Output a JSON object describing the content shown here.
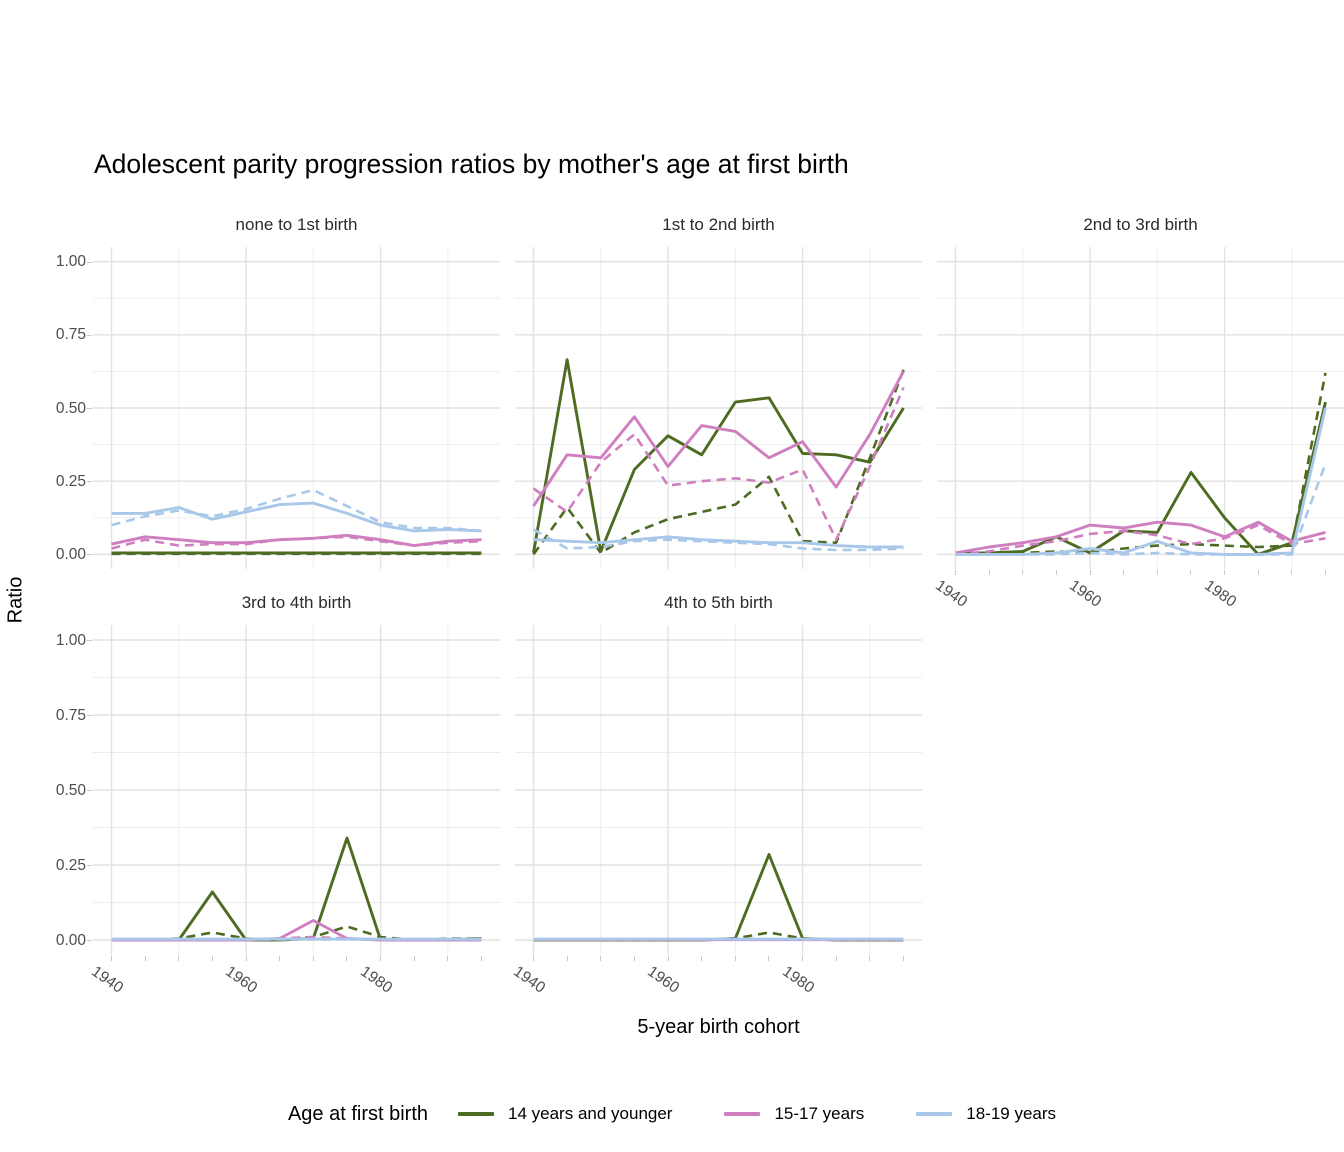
{
  "title": "Adolescent parity progression ratios by mother's age at first birth",
  "axes": {
    "y_title": "Ratio",
    "x_title": "5-year birth cohort",
    "y_ticks": [
      {
        "label": "1.00",
        "value": 1.0
      },
      {
        "label": "0.75",
        "value": 0.75
      },
      {
        "label": "0.50",
        "value": 0.5
      },
      {
        "label": "0.25",
        "value": 0.25
      },
      {
        "label": "0.00",
        "value": 0.0
      }
    ],
    "x_ticks": [
      {
        "label": "1940",
        "year": 1940
      },
      {
        "label": "1960",
        "year": 1960
      },
      {
        "label": "1980",
        "year": 1980
      }
    ]
  },
  "legend": {
    "title": "Age at first birth"
  },
  "chart_data": {
    "type": "line",
    "x": [
      1940,
      1945,
      1950,
      1955,
      1960,
      1965,
      1970,
      1975,
      1980,
      1985,
      1990,
      1995
    ],
    "xlabel": "5-year birth cohort",
    "ylabel": "Ratio",
    "ylim": [
      0,
      1
    ],
    "grid": true,
    "legend_position": "bottom",
    "groups": [
      {
        "name": "14 years and younger",
        "color": "#4e6b22"
      },
      {
        "name": "15-17 years",
        "color": "#cf7fc0"
      },
      {
        "name": "18-19 years",
        "color": "#a9c8e9"
      }
    ],
    "facets": [
      {
        "label": "none to 1st birth",
        "series": [
          {
            "group": 0,
            "linetype": "dashed",
            "values": [
              0.002,
              0.002,
              0.002,
              0.002,
              0.002,
              0.002,
              0.002,
              0.002,
              0.002,
              0.002,
              0.002,
              0.002
            ]
          },
          {
            "group": 0,
            "linetype": "solid",
            "values": [
              0.005,
              0.005,
              0.005,
              0.005,
              0.005,
              0.005,
              0.005,
              0.005,
              0.005,
              0.005,
              0.005,
              0.005
            ]
          },
          {
            "group": 1,
            "linetype": "dashed",
            "values": [
              0.02,
              0.05,
              0.03,
              0.035,
              0.035,
              0.05,
              0.055,
              0.06,
              0.045,
              0.03,
              0.04,
              0.045
            ]
          },
          {
            "group": 1,
            "linetype": "solid",
            "values": [
              0.035,
              0.06,
              0.05,
              0.04,
              0.04,
              0.05,
              0.055,
              0.065,
              0.05,
              0.03,
              0.045,
              0.05
            ]
          },
          {
            "group": 2,
            "linetype": "dashed",
            "values": [
              0.1,
              0.13,
              0.15,
              0.13,
              0.155,
              0.19,
              0.22,
              0.165,
              0.11,
              0.09,
              0.09,
              0.08
            ]
          },
          {
            "group": 2,
            "linetype": "solid",
            "values": [
              0.14,
              0.14,
              0.16,
              0.12,
              0.145,
              0.17,
              0.175,
              0.14,
              0.1,
              0.08,
              0.085,
              0.08
            ]
          }
        ]
      },
      {
        "label": "1st to 2nd birth",
        "series": [
          {
            "group": 0,
            "linetype": "dashed",
            "values": [
              0.0,
              0.16,
              0.005,
              0.075,
              0.12,
              0.145,
              0.17,
              0.265,
              0.045,
              0.04,
              0.33,
              0.63
            ]
          },
          {
            "group": 0,
            "linetype": "solid",
            "values": [
              0.005,
              0.665,
              0.01,
              0.29,
              0.405,
              0.34,
              0.52,
              0.535,
              0.345,
              0.34,
              0.315,
              0.5
            ]
          },
          {
            "group": 1,
            "linetype": "dashed",
            "values": [
              0.225,
              0.145,
              0.315,
              0.41,
              0.235,
              0.25,
              0.26,
              0.245,
              0.29,
              0.05,
              0.3,
              0.57
            ]
          },
          {
            "group": 1,
            "linetype": "solid",
            "values": [
              0.165,
              0.34,
              0.33,
              0.47,
              0.3,
              0.44,
              0.42,
              0.33,
              0.385,
              0.23,
              0.41,
              0.625
            ]
          },
          {
            "group": 2,
            "linetype": "dashed",
            "values": [
              0.085,
              0.02,
              0.025,
              0.045,
              0.05,
              0.045,
              0.04,
              0.035,
              0.02,
              0.015,
              0.015,
              0.02
            ]
          },
          {
            "group": 2,
            "linetype": "solid",
            "values": [
              0.05,
              0.045,
              0.04,
              0.05,
              0.06,
              0.05,
              0.045,
              0.04,
              0.04,
              0.03,
              0.025,
              0.025
            ]
          }
        ]
      },
      {
        "label": "2nd to 3rd birth",
        "series": [
          {
            "group": 0,
            "linetype": "dashed",
            "values": [
              0.0,
              0.0,
              0.005,
              0.01,
              0.005,
              0.02,
              0.03,
              0.035,
              0.03,
              0.025,
              0.03,
              0.62
            ]
          },
          {
            "group": 0,
            "linetype": "solid",
            "values": [
              0.005,
              0.005,
              0.01,
              0.06,
              0.005,
              0.08,
              0.075,
              0.28,
              0.125,
              0.0,
              0.04,
              0.52
            ]
          },
          {
            "group": 1,
            "linetype": "dashed",
            "values": [
              0.0,
              0.01,
              0.03,
              0.045,
              0.07,
              0.08,
              0.065,
              0.035,
              0.055,
              0.1,
              0.035,
              0.055
            ]
          },
          {
            "group": 1,
            "linetype": "solid",
            "values": [
              0.005,
              0.025,
              0.04,
              0.06,
              0.1,
              0.09,
              0.11,
              0.1,
              0.06,
              0.11,
              0.045,
              0.075
            ]
          },
          {
            "group": 2,
            "linetype": "dashed",
            "values": [
              0.0,
              0.0,
              0.0,
              0.0,
              0.005,
              0.0,
              0.005,
              0.0,
              0.0,
              0.0,
              0.0,
              0.31
            ]
          },
          {
            "group": 2,
            "linetype": "solid",
            "values": [
              0.0,
              0.0,
              0.0,
              0.005,
              0.02,
              0.005,
              0.045,
              0.005,
              0.0,
              0.0,
              0.005,
              0.5
            ]
          }
        ]
      },
      {
        "label": "3rd to 4th birth",
        "series": [
          {
            "group": 0,
            "linetype": "dashed",
            "values": [
              0.0,
              0.0,
              0.005,
              0.025,
              0.005,
              0.0,
              0.01,
              0.045,
              0.01,
              0.0,
              0.005,
              0.005
            ]
          },
          {
            "group": 0,
            "linetype": "solid",
            "values": [
              0.0,
              0.0,
              0.0,
              0.16,
              0.0,
              0.0,
              0.005,
              0.34,
              0.0,
              0.0,
              0.0,
              0.005
            ]
          },
          {
            "group": 1,
            "linetype": "dashed",
            "values": [
              0.0,
              0.0,
              0.0,
              0.0,
              0.0,
              0.005,
              0.01,
              0.005,
              0.0,
              0.0,
              0.0,
              0.0
            ]
          },
          {
            "group": 1,
            "linetype": "solid",
            "values": [
              0.0,
              0.0,
              0.0,
              0.0,
              0.0,
              0.005,
              0.065,
              0.005,
              0.0,
              0.0,
              0.0,
              0.0
            ]
          },
          {
            "group": 2,
            "linetype": "dashed",
            "values": [
              0.002,
              0.002,
              0.002,
              0.002,
              0.002,
              0.002,
              0.002,
              0.002,
              0.002,
              0.002,
              0.002,
              0.002
            ]
          },
          {
            "group": 2,
            "linetype": "solid",
            "values": [
              0.003,
              0.003,
              0.003,
              0.003,
              0.003,
              0.003,
              0.003,
              0.003,
              0.003,
              0.003,
              0.003,
              0.003
            ]
          }
        ]
      },
      {
        "label": "4th to 5th birth",
        "series": [
          {
            "group": 0,
            "linetype": "dashed",
            "values": [
              0.0,
              0.0,
              0.0,
              0.0,
              0.0,
              0.0,
              0.005,
              0.025,
              0.005,
              0.0,
              0.0,
              0.0
            ]
          },
          {
            "group": 0,
            "linetype": "solid",
            "values": [
              0.0,
              0.0,
              0.0,
              0.0,
              0.0,
              0.0,
              0.005,
              0.285,
              0.005,
              0.0,
              0.0,
              0.0
            ]
          },
          {
            "group": 1,
            "linetype": "dashed",
            "values": [
              0.001,
              0.001,
              0.001,
              0.001,
              0.001,
              0.001,
              0.001,
              0.001,
              0.001,
              0.001,
              0.001,
              0.001
            ]
          },
          {
            "group": 1,
            "linetype": "solid",
            "values": [
              0.001,
              0.001,
              0.001,
              0.001,
              0.001,
              0.001,
              0.001,
              0.001,
              0.001,
              0.001,
              0.001,
              0.001
            ]
          },
          {
            "group": 2,
            "linetype": "dashed",
            "values": [
              0.002,
              0.002,
              0.002,
              0.002,
              0.002,
              0.002,
              0.002,
              0.002,
              0.002,
              0.002,
              0.002,
              0.002
            ]
          },
          {
            "group": 2,
            "linetype": "solid",
            "values": [
              0.003,
              0.003,
              0.003,
              0.003,
              0.003,
              0.003,
              0.003,
              0.003,
              0.003,
              0.003,
              0.003,
              0.003
            ]
          }
        ]
      }
    ]
  }
}
